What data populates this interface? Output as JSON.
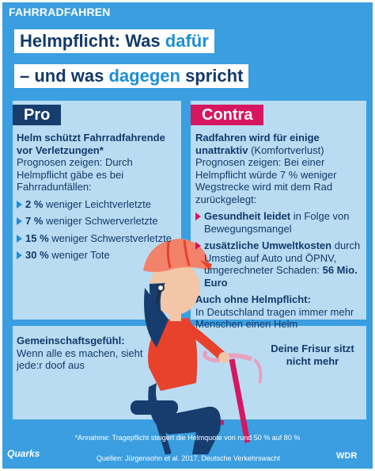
{
  "header": {
    "topic": "FAHRRADFAHREN",
    "title_line1_a": "Helmpflicht: Was ",
    "title_line1_b": "dafür",
    "title_line2_a": "– und was ",
    "title_line2_b": "dagegen",
    "title_line2_c": " spricht"
  },
  "pro": {
    "label": "Pro",
    "heading": "Helm schützt Fahrradfahrende vor Verletzungen*",
    "intro": "Prognosen zeigen: Durch Helmpflicht gäbe es bei Fahrradunfällen:",
    "items": [
      {
        "value": "2 %",
        "text": " weniger Leichtverletzte"
      },
      {
        "value": "7 %",
        "text": " weniger Schwerverletzte"
      },
      {
        "value": "15 %",
        "text": " weniger Schwerstverletzte"
      },
      {
        "value": "30 %",
        "text": " weniger Tote"
      }
    ],
    "extra_heading": "Gemeinschaftsgefühl:",
    "extra_text": "Wenn alle es machen, sieht jede:r doof aus"
  },
  "contra": {
    "label": "Contra",
    "heading": "Radfahren wird für einige unattraktiv",
    "heading_suffix": " (Komfortverlust)",
    "intro": "Prognosen zeigen: Bei einer Helmpflicht würde 7 % weniger Wegstrecke wird mit dem Rad zurückgelegt:",
    "items": [
      {
        "bold": "Gesundheit leidet",
        "text": " in Folge von Bewegungsmangel"
      },
      {
        "bold": "zusätzliche Umweltkosten",
        "text": " durch Umstieg auf Auto und ÖPNV, umgerechneter Schaden: ",
        "bold2": "56 Mio. Euro"
      }
    ],
    "extra_heading": "Auch ohne Helmpflicht:",
    "extra_text": "In Deutschland tragen immer mehr Menschen einen Helm",
    "frisur": "Deine Frisur sitzt nicht mehr"
  },
  "footer": {
    "annahme": "*Annahme: Tragepflicht steigert die Helmquote von rund 50 % auf 80 %",
    "quellen": "Quellen: Jürgensohn et al. 2017, Deutsche Verkehrswacht",
    "brand_left": "Quarks",
    "brand_right": "WDR"
  },
  "colors": {
    "background": "#3a9ee0",
    "panel": "#b9dcf3",
    "navy": "#163d6e",
    "contra": "#d6175f",
    "helmet": "#f2826a"
  }
}
